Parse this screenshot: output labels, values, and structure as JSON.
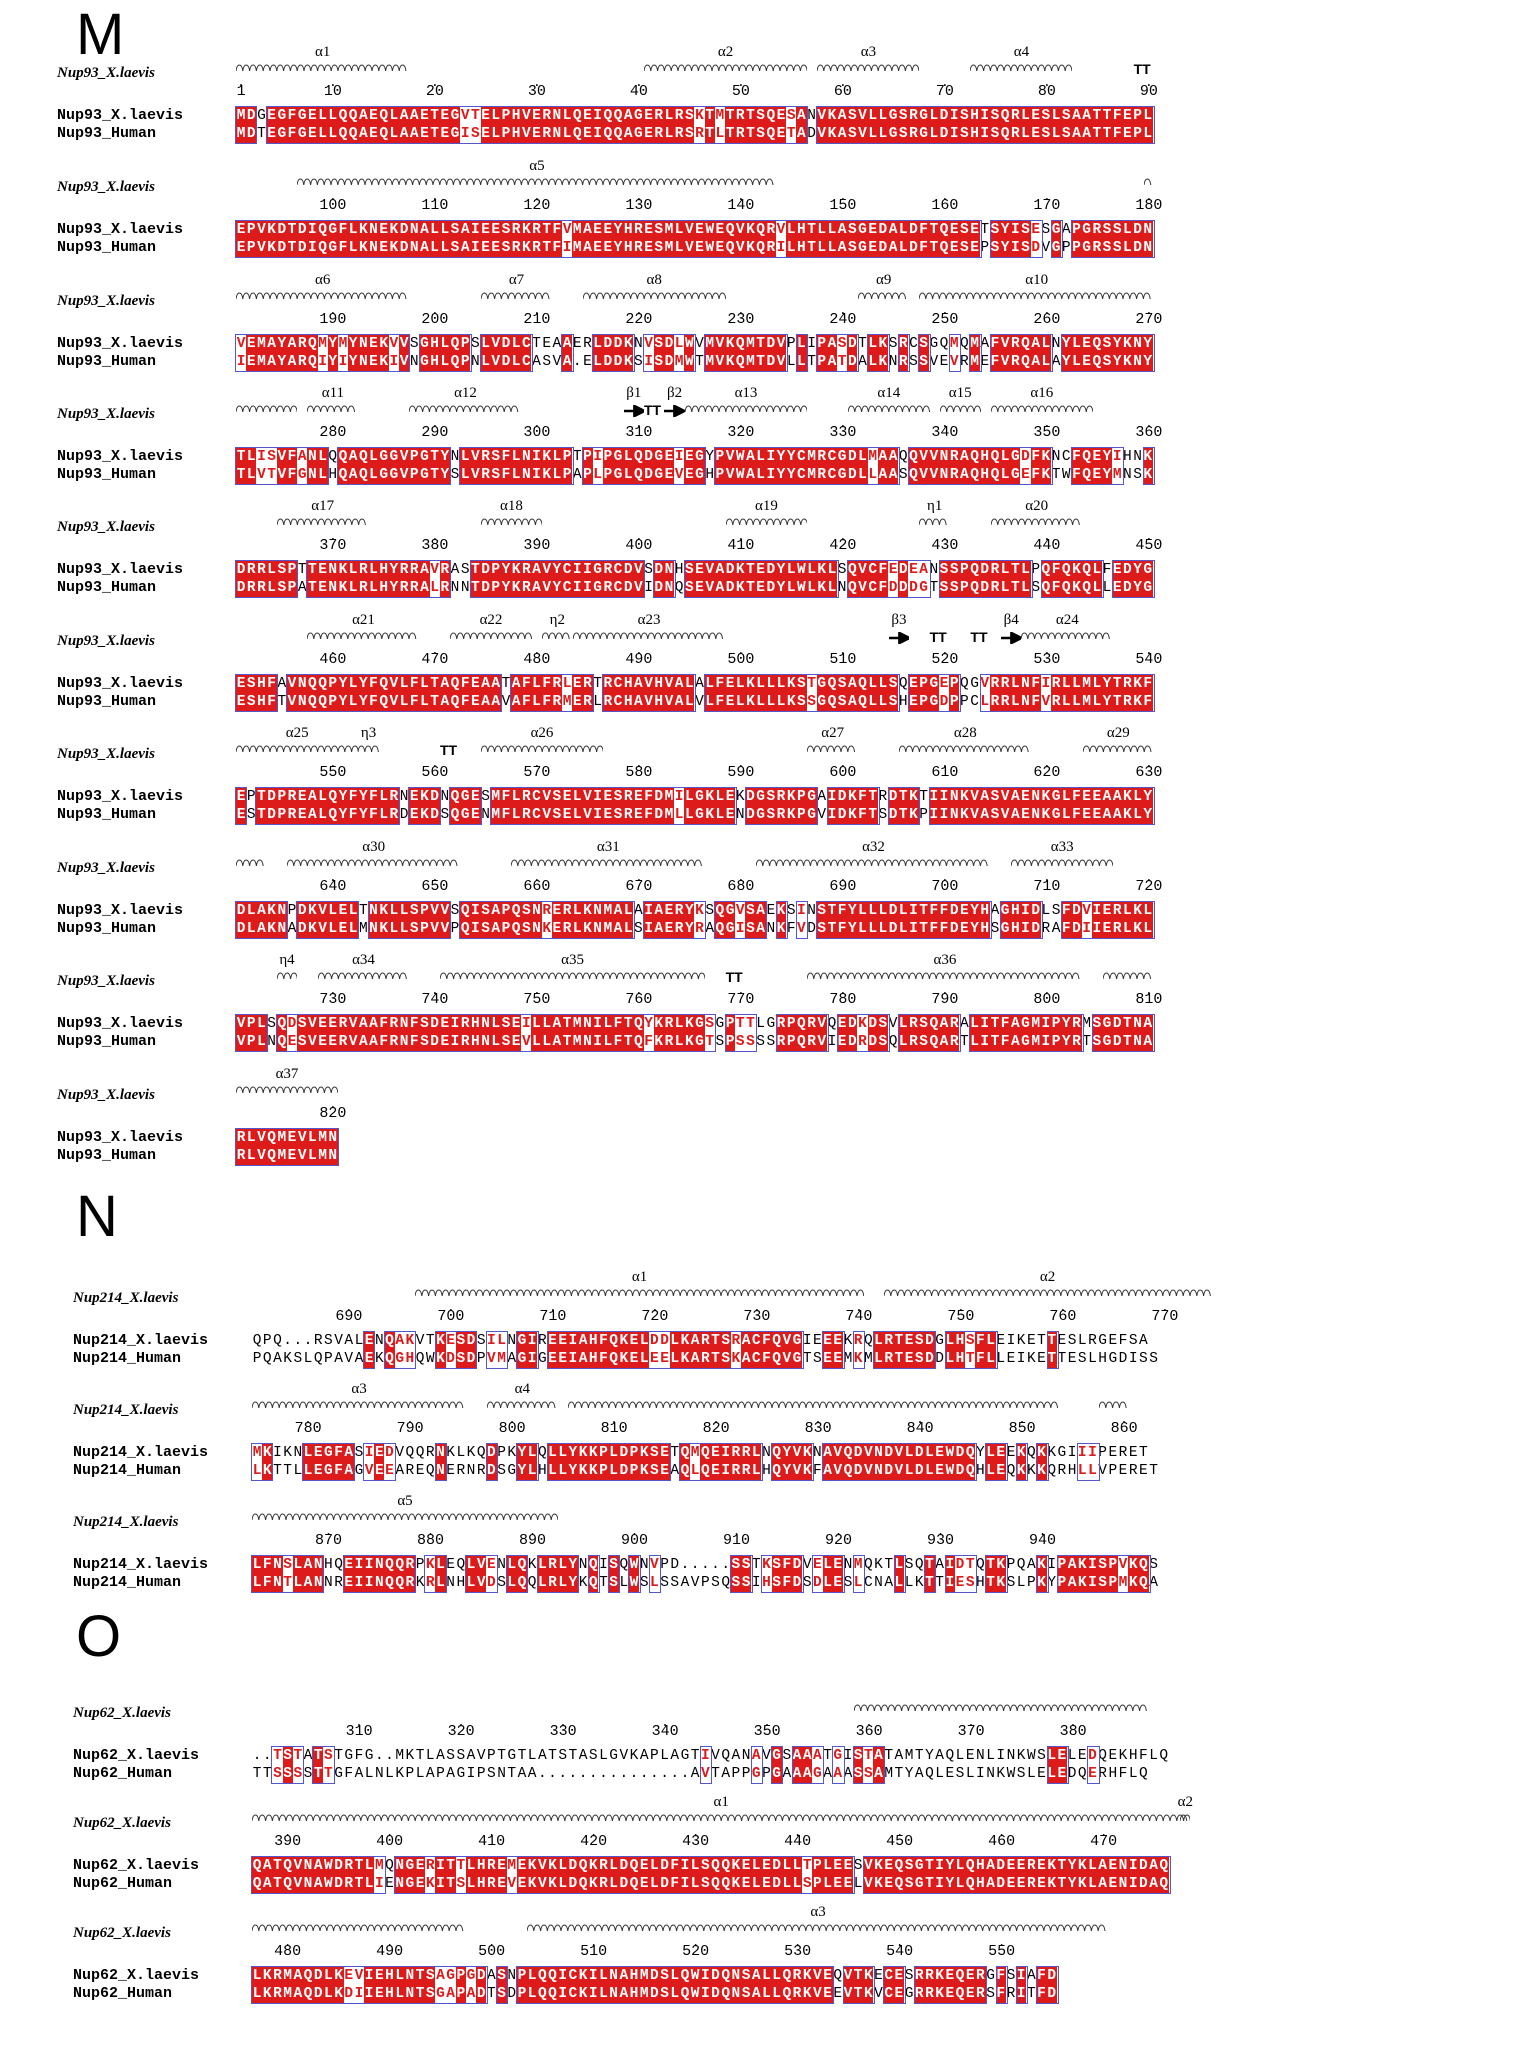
{
  "colors": {
    "conserved_bg": "#dd1b1b",
    "similar_text": "#dd1b1b",
    "box_border": "#5555cc"
  },
  "panels": [
    {
      "letter": "M",
      "ref_label": "Nup93_X.laevis",
      "seq1_label": "Nup93_X.laevis",
      "seq2_label": "Nup93_Human",
      "blocks": [
        {
          "start": 1,
          "ss": [
            {
              "t": "helix",
              "a": 1,
              "b": 17,
              "label": "α1"
            },
            {
              "t": "helix",
              "a": 41,
              "b": 56,
              "label": "α2"
            },
            {
              "t": "helix",
              "a": 58,
              "b": 67,
              "label": "α3"
            },
            {
              "t": "helix",
              "a": 73,
              "b": 82,
              "label": "α4"
            },
            {
              "t": "tt",
              "a": 89,
              "b": 90,
              "label": "TT"
            }
          ],
          "ticks": [
            1,
            10,
            20,
            30,
            40,
            50,
            60,
            70,
            80,
            90
          ],
          "s1": "MDGEGFGELLQQAEQLAAETEGVTELPHVERNLQEIQQAGERLRSKTMTRTSQESANVKASVLLGSRGLDISHISQRLESLSAATTFEPL",
          "s2": "MDTEGFGELLQQAEQLAAETEGISELPHVERNLQEIQQAGERLRSRTLTRTSQETADVKASVLLGSRGLDISHISQRLESLSAATTFEPL"
        },
        {
          "start": 91,
          "ss": [
            {
              "t": "helix",
              "a": 97,
              "b": 143,
              "label": "α5"
            },
            {
              "t": "helix",
              "a": 180,
              "b": 180,
              "label": ""
            }
          ],
          "ticks": [
            100,
            110,
            120,
            130,
            140,
            150,
            160,
            170,
            180
          ],
          "s1": "EPVKDTDIQGFLKNEKDNALLSAIEESRKRTFVMAEEYHRESMLVEWEQVKQRVLHTLLASGEDALDFTQESETSYISESGAPGRSSLDN",
          "s2": "EPVKDTDIQGFLKNEKDNALLSAIEESRKRTFIMAEEYHRESMLVEWEQVKQRILHTLLASGEDALDFTQESEPSYISDVGPPGRSSLDN"
        },
        {
          "start": 181,
          "ss": [
            {
              "t": "helix",
              "a": 181,
              "b": 197,
              "label": "α6"
            },
            {
              "t": "helix",
              "a": 205,
              "b": 211,
              "label": "α7"
            },
            {
              "t": "helix",
              "a": 215,
              "b": 228,
              "label": "α8"
            },
            {
              "t": "helix",
              "a": 242,
              "b": 246,
              "label": "α9"
            },
            {
              "t": "helix",
              "a": 248,
              "b": 270,
              "label": "α10"
            }
          ],
          "ticks": [
            190,
            200,
            210,
            220,
            230,
            240,
            250,
            260,
            270
          ],
          "s1": "VEMAYARQMYMYNEKVVSGHLQPSLVDLCTEAAERLDDKNVSDLWVMVKQMTDVPLIPASDTLKSRCSGQMQMAFVRQALNYLEQSYKNY",
          "s2": "IEMAYARQIYIYNEKIVNGHLQPNLVDLCASVA.ELDDKSISDMWTMVKQMTDVLLTPATDALKNRSSVEVRMEFVRQALAYLEQSYKNY"
        },
        {
          "start": 271,
          "ss": [
            {
              "t": "helix",
              "a": 271,
              "b": 276,
              "label": ""
            },
            {
              "t": "helix",
              "a": 278,
              "b": 282,
              "label": "α11"
            },
            {
              "t": "helix",
              "a": 288,
              "b": 298,
              "label": "α12"
            },
            {
              "t": "arrow",
              "a": 309,
              "b": 310,
              "label": "β1"
            },
            {
              "t": "tt",
              "a": 311,
              "b": 312,
              "label": "TT"
            },
            {
              "t": "arrow",
              "a": 313,
              "b": 314,
              "label": "β2"
            },
            {
              "t": "helix",
              "a": 315,
              "b": 326,
              "label": "α13"
            },
            {
              "t": "helix",
              "a": 331,
              "b": 338,
              "label": "α14"
            },
            {
              "t": "helix",
              "a": 340,
              "b": 343,
              "label": "α15"
            },
            {
              "t": "helix",
              "a": 345,
              "b": 354,
              "label": "α16"
            }
          ],
          "ticks": [
            280,
            290,
            300,
            310,
            320,
            330,
            340,
            350,
            360
          ],
          "s1": "TLISVFANLQQAQLGGVPGTYNLVRSFLNIKLPTPIPGLQDGEIEGYPVWALIYYCMRCGDLMAAQQVVNRAQHQLGDFKNCFQEYIHNK",
          "s2": "TLVTVFGNLHQAQLGGVPGTYSLVRSFLNIKLPAPLPGLQDGEVEGHPVWALIYYCMRCGDLLAASQVVNRAQHQLGEFKTWFQEYMNSK"
        },
        {
          "start": 361,
          "ss": [
            {
              "t": "helix",
              "a": 365,
              "b": 373,
              "label": "α17"
            },
            {
              "t": "helix",
              "a": 385,
              "b": 390,
              "label": "α18"
            },
            {
              "t": "helix",
              "a": 409,
              "b": 416,
              "label": "α19"
            },
            {
              "t": "helix",
              "a": 428,
              "b": 430,
              "label": "η1"
            },
            {
              "t": "helix",
              "a": 435,
              "b": 443,
              "label": "α20"
            }
          ],
          "ticks": [
            370,
            380,
            390,
            400,
            410,
            420,
            430,
            440,
            450
          ],
          "s1": "DRRLSPTTENKLRLHYRRAVRASTDPYKRAVYCIIGRCDVSDNHSEVADKTEDYLWLKLSQVCFEDEANSSPQDRLTLPQFQKQLFEDYG",
          "s2": "DRRLSPATENKLRLHYRRALRNNTDPYKRAVYCIIGRCDVIDNQSEVADKTEDYLWLKLNQVCFDDDGTSSPQDRLTLSQFQKQLLEDYG"
        },
        {
          "start": 451,
          "ss": [
            {
              "t": "helix",
              "a": 458,
              "b": 468,
              "label": "α21"
            },
            {
              "t": "helix",
              "a": 472,
              "b": 479,
              "label": "α22"
            },
            {
              "t": "helix",
              "a": 481,
              "b": 483,
              "label": "η2"
            },
            {
              "t": "helix",
              "a": 484,
              "b": 498,
              "label": "α23"
            },
            {
              "t": "arrow",
              "a": 515,
              "b": 516,
              "label": "β3"
            },
            {
              "t": "tt",
              "a": 519,
              "b": 520,
              "label": "TT"
            },
            {
              "t": "tt",
              "a": 523,
              "b": 524,
              "label": "TT"
            },
            {
              "t": "arrow",
              "a": 526,
              "b": 527,
              "label": "β4"
            },
            {
              "t": "helix",
              "a": 528,
              "b": 536,
              "label": "α24"
            }
          ],
          "ticks": [
            460,
            470,
            480,
            490,
            500,
            510,
            520,
            530,
            540
          ],
          "s1": "ESHFAVNQQPYLYFQVLFLTAQFEAATAFLFRLERTRCHAVHVALALFELKLLLKSTGQSAQLLSQEPGEPQGVRRLNFIRLLMLYTRKF",
          "s2": "ESHFTVNQQPYLYFQVLFLTAQFEAAVAFLFRMERLRCHAVHVALVLFELKLLLKSSGQSAQLLSHEPGDPPCLRRLNFVRLLMLYTRKF"
        },
        {
          "start": 541,
          "ss": [
            {
              "t": "helix",
              "a": 541,
              "b": 552,
              "label": "α25"
            },
            {
              "t": "helix",
              "a": 553,
              "b": 554,
              "label": "η3"
            },
            {
              "t": "tt",
              "a": 561,
              "b": 562,
              "label": "TT"
            },
            {
              "t": "helix",
              "a": 565,
              "b": 576,
              "label": "α26"
            },
            {
              "t": "helix",
              "a": 597,
              "b": 601,
              "label": "α27"
            },
            {
              "t": "helix",
              "a": 606,
              "b": 618,
              "label": "α28"
            },
            {
              "t": "helix",
              "a": 624,
              "b": 630,
              "label": "α29"
            }
          ],
          "ticks": [
            550,
            560,
            570,
            580,
            590,
            600,
            610,
            620,
            630
          ],
          "s1": "EPTDPREALQYFYFLRNEKDNQGESMFLRCVSELVIESREFDMILGKLEKDGSRKPGAIDKFTRDTKTIINKVASVAENKGLFEEAAKLY",
          "s2": "ESTDPREALQYFYFLRDEKDSQGENMFLRCVSELVIESREFDMLLGKLENDGSRKPGVIDKFTSDTKPIINKVASVAENKGLFEEAAKLY"
        },
        {
          "start": 631,
          "ss": [
            {
              "t": "helix",
              "a": 631,
              "b": 633,
              "label": ""
            },
            {
              "t": "helix",
              "a": 636,
              "b": 652,
              "label": "α30"
            },
            {
              "t": "helix",
              "a": 658,
              "b": 676,
              "label": "α31"
            },
            {
              "t": "helix",
              "a": 682,
              "b": 704,
              "label": "α32"
            },
            {
              "t": "helix",
              "a": 707,
              "b": 716,
              "label": "α33"
            }
          ],
          "ticks": [
            640,
            650,
            660,
            670,
            680,
            690,
            700,
            710,
            720
          ],
          "s1": "DLAKNPDKVLELTNKLLSPVVSQISAPQSNRERLKNMALAIAERYKSQGVSAEKSINSTFYLLLDLITFFDEYHAGHIDLSFDVIERLKL",
          "s2": "DLAKNADKVLELMNKLLSPVVPQISAPQSNKERLKNMALSIAERYRAQGISANKFVDSTFYLLLDLITFFDEYHSGHIDRAFDIIERLKL"
        },
        {
          "start": 721,
          "ss": [
            {
              "t": "helix",
              "a": 725,
              "b": 726,
              "label": "η4"
            },
            {
              "t": "helix",
              "a": 729,
              "b": 737,
              "label": "α34"
            },
            {
              "t": "helix",
              "a": 741,
              "b": 766,
              "label": "α35"
            },
            {
              "t": "tt",
              "a": 769,
              "b": 770,
              "label": "TT"
            },
            {
              "t": "helix",
              "a": 777,
              "b": 803,
              "label": "α36"
            },
            {
              "t": "helix",
              "a": 806,
              "b": 810,
              "label": ""
            }
          ],
          "ticks": [
            730,
            740,
            750,
            760,
            770,
            780,
            790,
            800,
            810
          ],
          "s1": "VPLSQDSVEERVAAFRNFSDEIRHNLSEILLATMNILFTQYKRLKGSGPTTLGRPQRVQEDKDSVLRSQARALITFAGMIPYRMSGDTNA",
          "s2": "VPLNQESVEERVAAFRNFSDEIRHNLSEVLLATMNILFTQFKRLKGTSPSSSSRPQRVIEDRDSQLRSQARTLITFAGMIPYRTSGDTNA"
        },
        {
          "start": 811,
          "ss": [
            {
              "t": "helix",
              "a": 811,
              "b": 820,
              "label": "α37"
            }
          ],
          "ticks": [
            820
          ],
          "s1": "RLVQMEVLMN",
          "s2": "RLVQMEVLMN"
        }
      ]
    },
    {
      "letter": "N",
      "ref_label": "Nup214_X.laevis",
      "seq1_label": "Nup214_X.laevis",
      "seq2_label": "Nup214_Human",
      "blocks": [
        {
          "start": 681,
          "ss": [
            {
              "t": "helix",
              "a": 697,
              "b": 740,
              "label": "α1"
            },
            {
              "t": "helix",
              "a": 743,
              "b": 774,
              "label": "α2"
            }
          ],
          "ticks": [
            690,
            700,
            710,
            720,
            730,
            740,
            750,
            760,
            770
          ],
          "s1": "QPQ...RSVALENQAKVTKESDSILNGIREEIAHFQKELDDLKARTSRACFQVGIEEEKRQLRTESDGLHSFLEIKETTESLRGEFSA",
          "s2": "PQAKSLQPAVAEKQGHQWKDSDPVMAGIGEEIAHFQKELEELKARTSKACFQVGTSEEMKMLRTESDDLHTFLLEIKETTESLHGDISS"
        },
        {
          "start": 775,
          "ss": [
            {
              "t": "helix",
              "a": 775,
              "b": 795,
              "label": "α3"
            },
            {
              "t": "helix",
              "a": 798,
              "b": 804,
              "label": "α4"
            },
            {
              "t": "helix",
              "a": 806,
              "b": 853,
              "label": ""
            },
            {
              "t": "helix",
              "a": 858,
              "b": 860,
              "label": ""
            }
          ],
          "ticks": [
            780,
            790,
            800,
            810,
            820,
            830,
            840,
            850,
            860
          ],
          "s1": "MKIKNLEGFASIEDVQQRNKLKQDPKYLQLLYKKPLDPKSETQMQEIRRLNQYVKNAVQDVNDVLDLEWDQYLEEKQKKGIIIPERET",
          "s2": "LKTTLLEGFAGVEEAREQNERNRDSGYLHLLYKKPLDPKSEAQLQEIRRLHQYVKFAVQDVNDVLDLEWDQHLEQKKKQRHLLVPERET"
        },
        {
          "start": 863,
          "ss": [
            {
              "t": "helix",
              "a": 863,
              "b": 892,
              "label": "α5"
            }
          ],
          "ticks": [
            870,
            880,
            890,
            900,
            910,
            920,
            930,
            940
          ],
          "s1": "LFNSLANHQEIINQQRPKLEQLVENLQKLRLYNQISQWNVPD.....SSTKSFDVELENMQKTLSQTAIDTQTKPQAKIPAKISPVKQS",
          "s2": "LFNTLANNREIINQQRKRLNHLVDSLQQLRLYKQTSLWSLSSAVPSQSSIHSFDSDLESLCNALLKTTIESHTKSLPKYPAKISPMKQA"
        }
      ]
    },
    {
      "letter": "O",
      "ref_label": "Nup62_X.laevis",
      "seq1_label": "Nup62_X.laevis",
      "seq2_label": "Nup62_Human",
      "blocks": [
        {
          "start": 300,
          "ss": [
            {
              "t": "helix",
              "a": 359,
              "b": 387,
              "label": ""
            }
          ],
          "ticks": [
            310,
            320,
            330,
            340,
            350,
            360,
            370,
            380
          ],
          "s1": "..TSTATSTGFG..MKTLASSAVPTGTLATSTASLGVKAPLAGTIVQANAVGSAAATGISTATAMTYAQLENLINKWSLELEDQEKHFLQ",
          "s2": "TTSSSSTTGFALNLKPLAPAGIPSNTAA...............AVTAPPGPGAAAGAAASSAMTYAQLESLINKWSLELEDQERHFLQ"
        },
        {
          "start": 387,
          "ss": [
            {
              "t": "helix",
              "a": 387,
              "b": 478,
              "label": "α1"
            },
            {
              "t": "helix",
              "a": 478,
              "b": 478,
              "label": "α2"
            }
          ],
          "ticks": [
            390,
            400,
            410,
            420,
            430,
            440,
            450,
            460,
            470
          ],
          "s1": "QATQVNAWDRTLMQNGERITTLHREMEKVKLDQKRLDQELDFILSQQKELEDLLTPLEESVKEQSGTIYLQHADEEREKTYKLAENIDAQ",
          "s2": "QATQVNAWDRTLIENGEKITSLHREVEKVKLDQKRLDQELDFILSQQKELEDLLSPLEELVKEQSGTIYLQHADEEREKTYKLAENIDAQ"
        },
        {
          "start": 477,
          "ss": [
            {
              "t": "helix",
              "a": 477,
              "b": 497,
              "label": ""
            },
            {
              "t": "helix",
              "a": 504,
              "b": 560,
              "label": "α3"
            }
          ],
          "ticks": [
            480,
            490,
            500,
            510,
            520,
            530,
            540,
            550
          ],
          "s1": "LKRMAQDLKEVIEHLNTSAGPGDASNPLQQICKILNAHMDSLQWIDQNSALLQRKVEQVTKECESRRKEQERGFSIAFD",
          "s2": "LKRMAQDLKDIIEHLNTSGAPADTSDPLQQICKILNAHMDSLQWIDQNSALLQRKVEEVTKVCEGRRKEQERSFRITFD"
        }
      ]
    }
  ]
}
